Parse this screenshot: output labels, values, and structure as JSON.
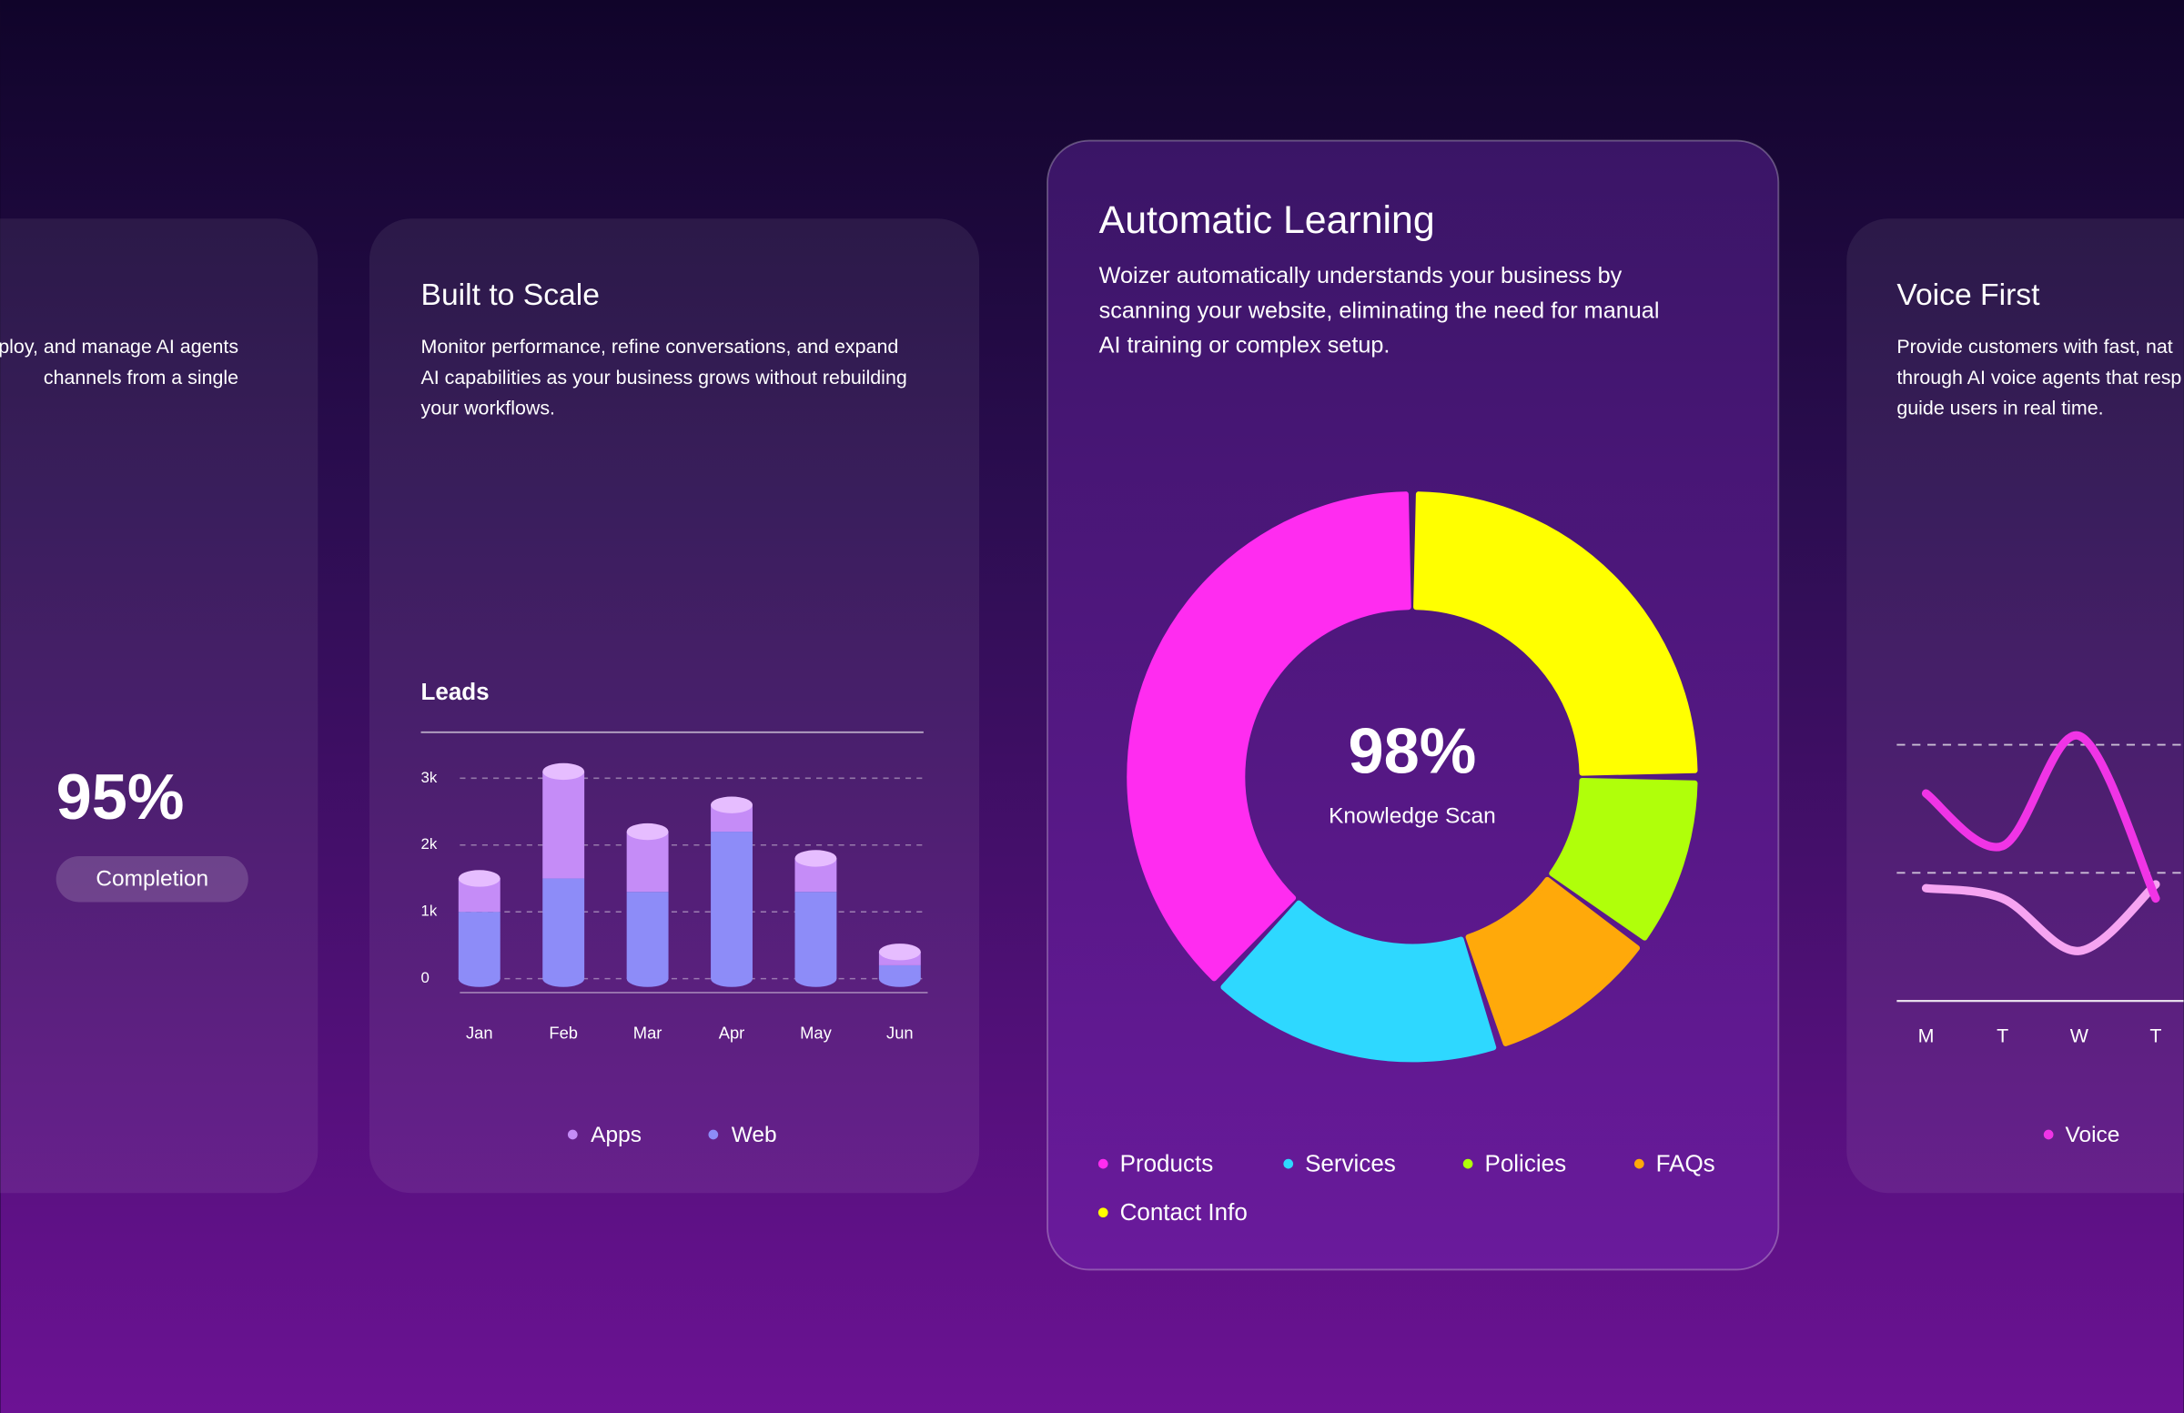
{
  "cards": [
    {
      "lines": [
        "ploy, and manage AI agents",
        "channels from a single"
      ],
      "stat": "95%",
      "badge": "Completion"
    },
    {
      "title": "Built to Scale",
      "lines": [
        "Monitor performance, refine conversations, and expand",
        "AI capabilities as your business grows without rebuilding",
        "your workflows."
      ]
    },
    {
      "title": "Automatic Learning",
      "lines": [
        "Woizer automatically understands your business by",
        "scanning your website, eliminating the need for manual",
        "AI training or complex setup."
      ]
    },
    {
      "title": "Voice First",
      "lines": [
        "Provide customers with fast, nat",
        "through AI voice agents that resp",
        "guide users in real time."
      ]
    }
  ],
  "chart_data": [
    {
      "type": "bar",
      "title": "Leads",
      "stacked": true,
      "categories": [
        "Jan",
        "Feb",
        "Mar",
        "Apr",
        "May",
        "Jun"
      ],
      "series": [
        {
          "name": "Apps",
          "color": "#c58cf7",
          "values": [
            500,
            1600,
            900,
            400,
            500,
            200
          ]
        },
        {
          "name": "Web",
          "color": "#8d8cf8",
          "values": [
            1000,
            1500,
            1300,
            2200,
            1300,
            200
          ]
        }
      ],
      "ylim": [
        0,
        3200
      ],
      "yticks": [
        0,
        {
          "value": 1000,
          "label": "1k"
        },
        {
          "value": 2000,
          "label": "2k"
        },
        {
          "value": 3000,
          "label": "3k"
        }
      ],
      "grid": true
    },
    {
      "type": "donut",
      "center_text": "98%",
      "center_label": "Knowledge Scan",
      "categories": [
        "Products",
        "Services",
        "Policies",
        "FAQs",
        "Contact Info"
      ],
      "values": [
        38,
        17,
        10,
        10,
        25
      ],
      "colors": [
        "#ff2cf0",
        "#2ed8ff",
        "#b0ff0a",
        "#ffa90a",
        "#ffff00"
      ]
    },
    {
      "type": "line",
      "categories": [
        "M",
        "T",
        "W",
        "T"
      ],
      "series": [
        {
          "name": "Voice",
          "color": "#f034e6",
          "values": [
            1.62,
            1.21,
            2.07,
            0.8
          ]
        },
        {
          "color": "#f6a4f2",
          "values": [
            0.88,
            0.8,
            0.39,
            0.91
          ]
        }
      ],
      "ylim": [
        0,
        2
      ],
      "yticks": [
        1,
        2
      ],
      "grid": true
    }
  ]
}
